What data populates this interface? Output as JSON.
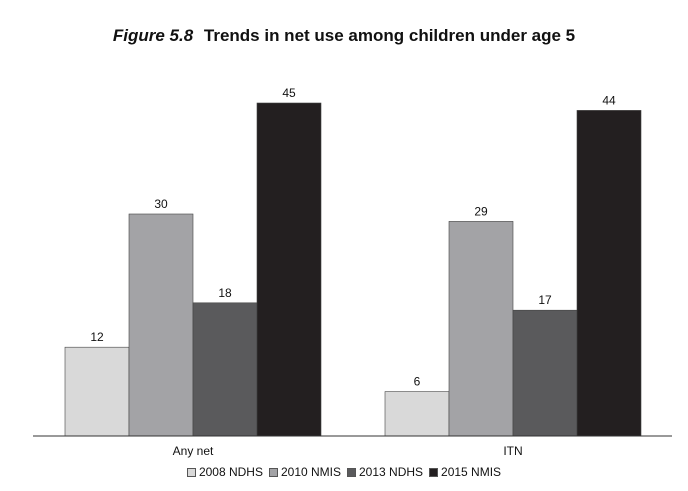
{
  "title": {
    "figure_label": "Figure 5.8",
    "text": "Trends in net use among children under age 5"
  },
  "chart_data": {
    "type": "bar",
    "categories": [
      "Any net",
      "ITN"
    ],
    "series": [
      {
        "name": "2008 NDHS",
        "values": [
          12,
          6
        ],
        "color": "#d9d9d9"
      },
      {
        "name": "2010 NMIS",
        "values": [
          30,
          29
        ],
        "color": "#a3a3a6"
      },
      {
        "name": "2013 NDHS",
        "values": [
          18,
          17
        ],
        "color": "#5a5a5c"
      },
      {
        "name": "2015 NMIS",
        "values": [
          45,
          44
        ],
        "color": "#231f20"
      }
    ],
    "ylim": [
      0,
      45
    ],
    "grid": false,
    "legend_position": "bottom",
    "data_labels": true
  }
}
